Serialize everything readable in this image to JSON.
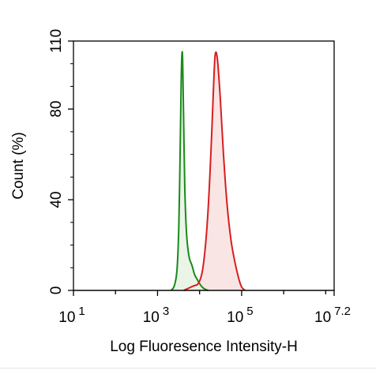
{
  "chart_data": {
    "type": "area",
    "xlabel": "Log Fluoresence Intensity-H",
    "ylabel": "Count  (%)",
    "x_scale": "log10",
    "xlim": [
      10,
      15848931.92
    ],
    "ylim": [
      0,
      110
    ],
    "x_ticks": [
      {
        "value": 10,
        "base": "10",
        "exp": "1"
      },
      {
        "value": 1000,
        "base": "10",
        "exp": "3"
      },
      {
        "value": 100000,
        "base": "10",
        "exp": "5"
      },
      {
        "value": 15848931.92,
        "base": "10",
        "exp": "7.2"
      }
    ],
    "y_ticks": [
      0,
      40,
      80,
      110
    ],
    "grid": false,
    "legend": "none",
    "series": [
      {
        "color": "#1a8a1a",
        "fill": "#e6f2e3",
        "x": [
          2100,
          2500,
          2900,
          3200,
          3450,
          3650,
          3800,
          3950,
          4150,
          4450,
          4900,
          5600,
          6600,
          7600,
          8700,
          10000,
          11500,
          13500,
          16000
        ],
        "y": [
          0,
          2,
          9,
          28,
          62,
          92,
          104,
          102,
          78,
          45,
          25,
          15,
          11,
          7,
          5,
          3,
          1.5,
          0.5,
          0
        ]
      },
      {
        "color": "#d61f1f",
        "fill": "#f9e0e0",
        "x": [
          4200,
          5500,
          7200,
          9300,
          11500,
          13500,
          15500,
          17500,
          19500,
          21500,
          23500,
          26500,
          31000,
          37000,
          45000,
          56000,
          70000,
          86000,
          100000,
          120000
        ],
        "y": [
          0,
          1,
          2,
          3,
          8,
          18,
          32,
          50,
          70,
          90,
          104,
          102,
          85,
          60,
          38,
          22,
          12,
          5,
          1.5,
          0
        ]
      }
    ]
  }
}
